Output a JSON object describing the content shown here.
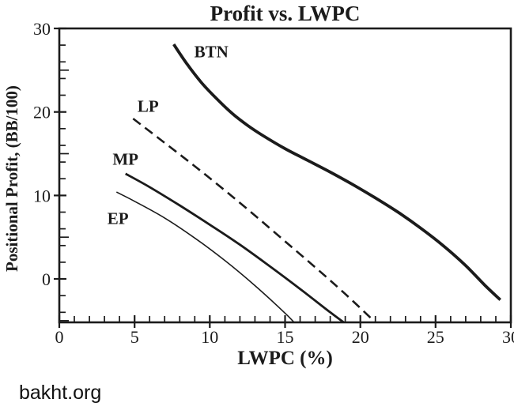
{
  "watermark": "bakht.org",
  "chart_data": {
    "type": "line",
    "title": "Profit vs. LWPC",
    "xlabel": "LWPC (%)",
    "ylabel": "Positional Profit, (BB/100)",
    "xlim": [
      0,
      30
    ],
    "ylim": [
      -5.2,
      30
    ],
    "grid": false,
    "legend_position": "inline-labels",
    "axis_color": "#1b1b1b",
    "xticks": {
      "major": [
        0,
        5,
        10,
        15,
        20,
        25,
        30
      ],
      "minor": [
        1,
        2,
        3,
        4,
        6,
        7,
        8,
        9,
        11,
        12,
        13,
        14,
        16,
        17,
        18,
        19,
        21,
        22,
        23,
        24,
        26,
        27,
        28,
        29
      ]
    },
    "yticks": {
      "major": [
        0,
        10,
        20,
        30
      ],
      "medium": [
        25,
        15,
        5,
        -5
      ],
      "minor": [
        28,
        26,
        24,
        22,
        18,
        16,
        14,
        12,
        8,
        6,
        4,
        2,
        -2,
        -4
      ]
    },
    "series": [
      {
        "name": "BTN",
        "style": "solid",
        "width": 3.8,
        "label_pos": [
          10.1,
          27.2
        ],
        "points": [
          [
            7.6,
            28.1
          ],
          [
            8.5,
            25.7
          ],
          [
            9.5,
            23.4
          ],
          [
            10.5,
            21.5
          ],
          [
            11.5,
            19.8
          ],
          [
            12.5,
            18.4
          ],
          [
            13.5,
            17.2
          ],
          [
            15,
            15.6
          ],
          [
            16.5,
            14.2
          ],
          [
            18,
            12.8
          ],
          [
            19.5,
            11.3
          ],
          [
            21,
            9.7
          ],
          [
            22.5,
            8.0
          ],
          [
            24,
            6.1
          ],
          [
            25.5,
            4.0
          ],
          [
            27,
            1.6
          ],
          [
            28.3,
            -0.8
          ],
          [
            29.3,
            -2.5
          ]
        ]
      },
      {
        "name": "LP",
        "style": "dashed",
        "width": 2.6,
        "label_pos": [
          5.9,
          20.6
        ],
        "points": [
          [
            4.9,
            19.2
          ],
          [
            7,
            16.3
          ],
          [
            9,
            13.5
          ],
          [
            11,
            10.6
          ],
          [
            13,
            7.6
          ],
          [
            15,
            4.5
          ],
          [
            17,
            1.4
          ],
          [
            19,
            -1.8
          ],
          [
            21,
            -5.2
          ]
        ]
      },
      {
        "name": "MP",
        "style": "solid",
        "width": 2.8,
        "label_pos": [
          4.4,
          14.3
        ],
        "points": [
          [
            4.4,
            12.6
          ],
          [
            6,
            11.0
          ],
          [
            8,
            8.8
          ],
          [
            10,
            6.5
          ],
          [
            12,
            4.1
          ],
          [
            14,
            1.5
          ],
          [
            16,
            -1.2
          ],
          [
            18,
            -4.0
          ],
          [
            18.9,
            -5.2
          ]
        ]
      },
      {
        "name": "EP",
        "style": "solid",
        "width": 1.6,
        "label_pos": [
          3.9,
          7.2
        ],
        "points": [
          [
            3.8,
            10.4
          ],
          [
            5,
            9.3
          ],
          [
            7,
            7.3
          ],
          [
            9,
            4.9
          ],
          [
            11,
            2.2
          ],
          [
            13,
            -0.8
          ],
          [
            15,
            -4.1
          ],
          [
            15.6,
            -5.2
          ]
        ]
      }
    ]
  }
}
